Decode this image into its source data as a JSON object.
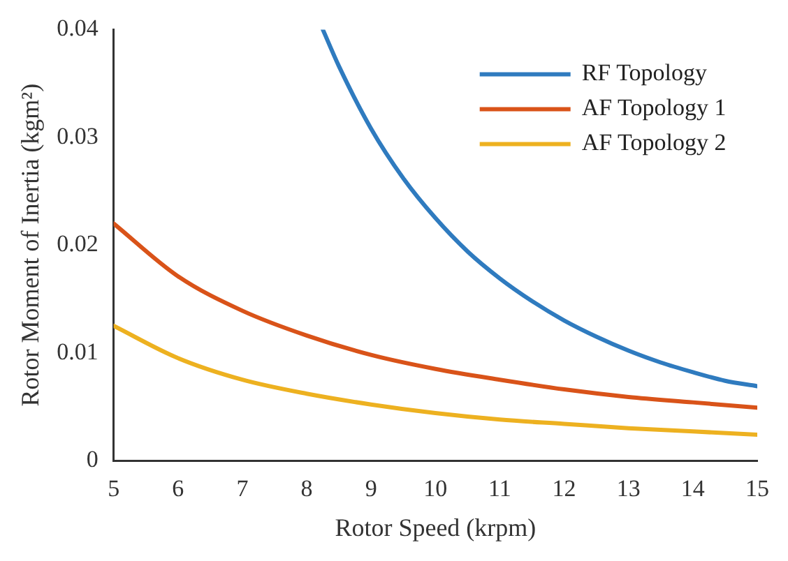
{
  "chart_data": {
    "type": "line",
    "xlabel": "Rotor Speed (krpm)",
    "ylabel": "Rotor Moment of Inertia (kgm²)",
    "xlim": [
      5,
      15
    ],
    "xticks": [
      5,
      6,
      7,
      8,
      9,
      10,
      11,
      12,
      13,
      14,
      15
    ],
    "ylim": [
      0,
      0.04
    ],
    "yticks": [
      0,
      0.01,
      0.02,
      0.03,
      0.04
    ],
    "grid": false,
    "legend": "top right",
    "marker": "none",
    "line_style": "solid",
    "series": [
      {
        "name": "RF Topology",
        "color": "#2f7bbf",
        "x": [
          8.25,
          8.5,
          9,
          9.5,
          10,
          10.5,
          11,
          11.5,
          12,
          12.5,
          13,
          13.5,
          14,
          14.5,
          15
        ],
        "values": [
          0.04,
          0.0366,
          0.0308,
          0.0262,
          0.0225,
          0.0194,
          0.0169,
          0.0148,
          0.013,
          0.0115,
          0.0102,
          0.0091,
          0.0082,
          0.0074,
          0.0069
        ]
      },
      {
        "name": "AF Topology 1",
        "color": "#d95319",
        "x": [
          5,
          6,
          7,
          8,
          9,
          10,
          11,
          12,
          13,
          14,
          15
        ],
        "values": [
          0.022,
          0.0171,
          0.0139,
          0.0116,
          0.0098,
          0.0085,
          0.0075,
          0.0066,
          0.0059,
          0.0054,
          0.0049
        ]
      },
      {
        "name": "AF Topology 2",
        "color": "#edb120",
        "x": [
          5,
          6,
          7,
          8,
          9,
          10,
          11,
          12,
          13,
          14,
          15
        ],
        "values": [
          0.0125,
          0.0095,
          0.0075,
          0.0062,
          0.0052,
          0.0044,
          0.0038,
          0.0034,
          0.003,
          0.0027,
          0.0024
        ]
      }
    ]
  }
}
